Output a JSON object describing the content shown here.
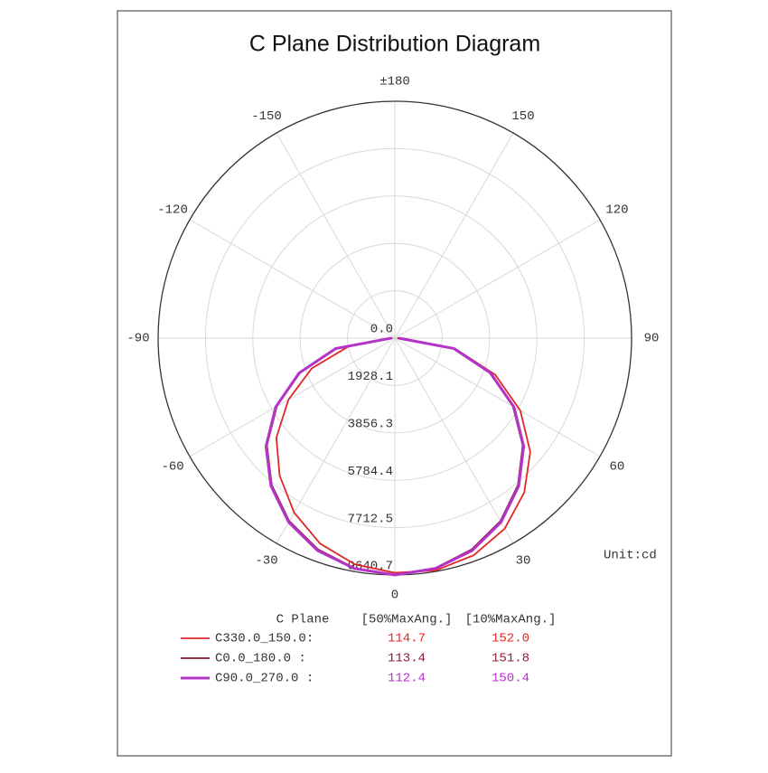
{
  "chart_data": {
    "type": "polar",
    "title": "C Plane Distribution Diagram",
    "annotation": "Unit:cd",
    "x": [
      -90,
      -80,
      -70,
      -60,
      -50,
      -40,
      -30,
      -20,
      -10,
      0,
      10,
      20,
      30,
      40,
      50,
      60,
      70,
      80,
      90
    ],
    "series": [
      {
        "name": "C330.0_150.0:",
        "color": "#e02828",
        "values": [
          100,
          1900,
          3600,
          5000,
          6300,
          7300,
          8200,
          8900,
          9350,
          9550,
          9600,
          9400,
          8950,
          8200,
          7200,
          5900,
          4350,
          2500,
          300
        ]
      },
      {
        "name": "C0.0_180.0  :",
        "color": "#8b1c30",
        "values": [
          100,
          2400,
          4100,
          5550,
          6800,
          7800,
          8600,
          9150,
          9500,
          9640,
          9500,
          9150,
          8600,
          7800,
          6800,
          5550,
          4100,
          2400,
          100
        ]
      },
      {
        "name": "C90.0_270.0 :",
        "color": "#b434c8",
        "values": [
          150,
          2450,
          4150,
          5600,
          6850,
          7850,
          8650,
          9200,
          9520,
          9640.7,
          9520,
          9200,
          8650,
          7850,
          6850,
          5600,
          4150,
          2450,
          150
        ]
      }
    ],
    "rlim": [
      0,
      9640.7
    ],
    "rticks": [
      {
        "value": 0,
        "label": "0.0"
      },
      1928.1,
      3856.3,
      5784.4,
      7712.5,
      9640.7
    ],
    "angle_ticks": [
      {
        "value": 180,
        "label": "±180"
      },
      150,
      120,
      90,
      60,
      30,
      0,
      -30,
      -60,
      -90,
      -120,
      -150
    ],
    "grid": true,
    "legend_table": {
      "header": [
        "C Plane",
        "[50%MaxAng.]",
        "[10%MaxAng.]"
      ],
      "rows": [
        [
          "114.7",
          "152.0"
        ],
        [
          "113.4",
          "151.8"
        ],
        [
          "112.4",
          "150.4"
        ]
      ]
    }
  }
}
